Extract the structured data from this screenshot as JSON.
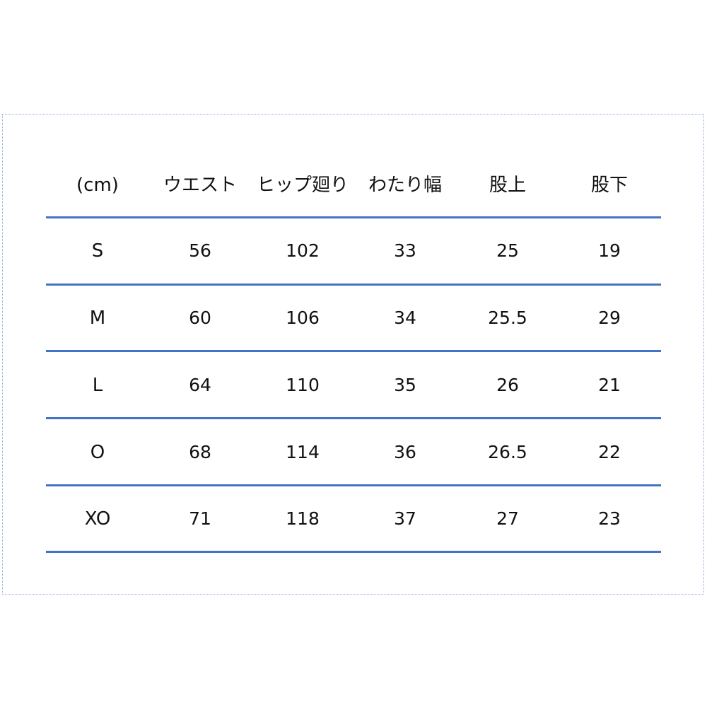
{
  "table": {
    "headers": [
      "(cm)",
      "ウエスト",
      "ヒップ廻り",
      "わたり幅",
      "股上",
      "股下"
    ],
    "rows": [
      [
        "S",
        "56",
        "102",
        "33",
        "25",
        "19"
      ],
      [
        "M",
        "60",
        "106",
        "34",
        "25.5",
        "29"
      ],
      [
        "L",
        "64",
        "110",
        "35",
        "26",
        "21"
      ],
      [
        "O",
        "68",
        "114",
        "36",
        "26.5",
        "22"
      ],
      [
        "XO",
        "71",
        "118",
        "37",
        "27",
        "23"
      ]
    ]
  },
  "colors": {
    "rule": "#4472c4",
    "frame": "#8fa8d8"
  }
}
